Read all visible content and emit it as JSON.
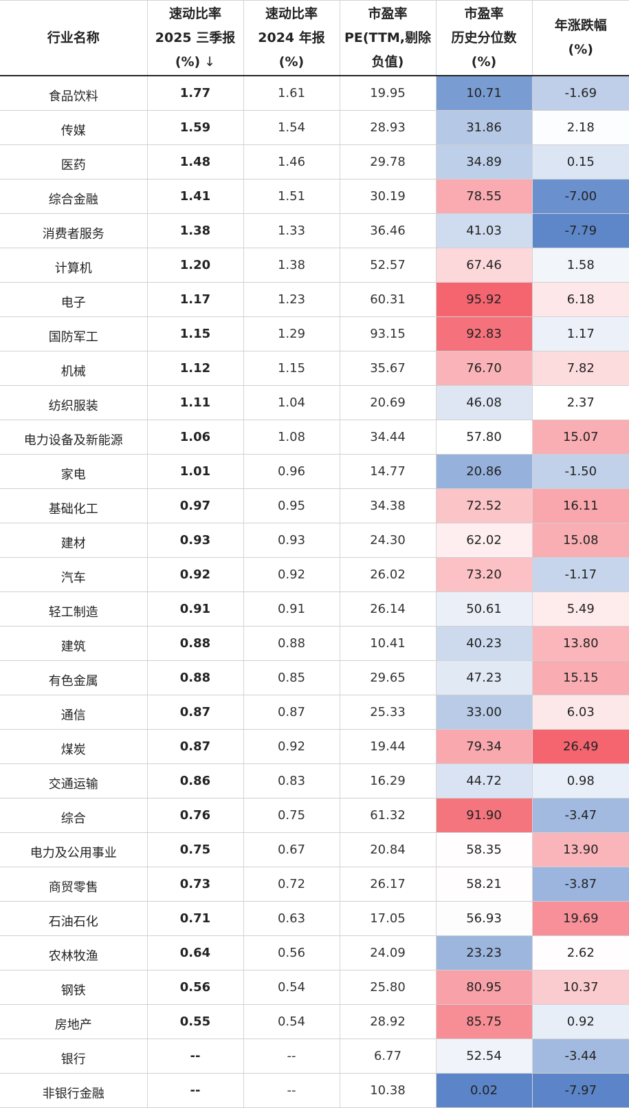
{
  "headers": {
    "name": "行业名称",
    "quick25": [
      "速动比率",
      "2025 三季报",
      "(%)"
    ],
    "quick25_sort_icon": "down-arrow",
    "quick24": [
      "速动比率",
      "2024 年报",
      "(%)"
    ],
    "pe": [
      "市盈率",
      "PE(TTM,剔除",
      "负值)"
    ],
    "pe_pct": [
      "市盈率",
      "历史分位数",
      "(%)"
    ],
    "chg": [
      "年涨跌幅",
      "(%)"
    ]
  },
  "colors": {
    "blue_strong": "#5b85c8",
    "red_strong": "#f4656f",
    "neutral": "#ffffff"
  },
  "rows": [
    {
      "name": "食品饮料",
      "quick25": "1.77",
      "quick24": "1.61",
      "pe": "19.95",
      "pe_pct": "10.71",
      "chg": "-1.69"
    },
    {
      "name": "传媒",
      "quick25": "1.59",
      "quick24": "1.54",
      "pe": "28.93",
      "pe_pct": "31.86",
      "chg": "2.18"
    },
    {
      "name": "医药",
      "quick25": "1.48",
      "quick24": "1.46",
      "pe": "29.78",
      "pe_pct": "34.89",
      "chg": "0.15"
    },
    {
      "name": "综合金融",
      "quick25": "1.41",
      "quick24": "1.51",
      "pe": "30.19",
      "pe_pct": "78.55",
      "chg": "-7.00"
    },
    {
      "name": "消费者服务",
      "quick25": "1.38",
      "quick24": "1.33",
      "pe": "36.46",
      "pe_pct": "41.03",
      "chg": "-7.79"
    },
    {
      "name": "计算机",
      "quick25": "1.20",
      "quick24": "1.38",
      "pe": "52.57",
      "pe_pct": "67.46",
      "chg": "1.58"
    },
    {
      "name": "电子",
      "quick25": "1.17",
      "quick24": "1.23",
      "pe": "60.31",
      "pe_pct": "95.92",
      "chg": "6.18"
    },
    {
      "name": "国防军工",
      "quick25": "1.15",
      "quick24": "1.29",
      "pe": "93.15",
      "pe_pct": "92.83",
      "chg": "1.17"
    },
    {
      "name": "机械",
      "quick25": "1.12",
      "quick24": "1.15",
      "pe": "35.67",
      "pe_pct": "76.70",
      "chg": "7.82"
    },
    {
      "name": "纺织服装",
      "quick25": "1.11",
      "quick24": "1.04",
      "pe": "20.69",
      "pe_pct": "46.08",
      "chg": "2.37"
    },
    {
      "name": "电力设备及新能源",
      "quick25": "1.06",
      "quick24": "1.08",
      "pe": "34.44",
      "pe_pct": "57.80",
      "chg": "15.07"
    },
    {
      "name": "家电",
      "quick25": "1.01",
      "quick24": "0.96",
      "pe": "14.77",
      "pe_pct": "20.86",
      "chg": "-1.50"
    },
    {
      "name": "基础化工",
      "quick25": "0.97",
      "quick24": "0.95",
      "pe": "34.38",
      "pe_pct": "72.52",
      "chg": "16.11"
    },
    {
      "name": "建材",
      "quick25": "0.93",
      "quick24": "0.93",
      "pe": "24.30",
      "pe_pct": "62.02",
      "chg": "15.08"
    },
    {
      "name": "汽车",
      "quick25": "0.92",
      "quick24": "0.92",
      "pe": "26.02",
      "pe_pct": "73.20",
      "chg": "-1.17"
    },
    {
      "name": "轻工制造",
      "quick25": "0.91",
      "quick24": "0.91",
      "pe": "26.14",
      "pe_pct": "50.61",
      "chg": "5.49"
    },
    {
      "name": "建筑",
      "quick25": "0.88",
      "quick24": "0.88",
      "pe": "10.41",
      "pe_pct": "40.23",
      "chg": "13.80"
    },
    {
      "name": "有色金属",
      "quick25": "0.88",
      "quick24": "0.85",
      "pe": "29.65",
      "pe_pct": "47.23",
      "chg": "15.15"
    },
    {
      "name": "通信",
      "quick25": "0.87",
      "quick24": "0.87",
      "pe": "25.33",
      "pe_pct": "33.00",
      "chg": "6.03"
    },
    {
      "name": "煤炭",
      "quick25": "0.87",
      "quick24": "0.92",
      "pe": "19.44",
      "pe_pct": "79.34",
      "chg": "26.49"
    },
    {
      "name": "交通运输",
      "quick25": "0.86",
      "quick24": "0.83",
      "pe": "16.29",
      "pe_pct": "44.72",
      "chg": "0.98"
    },
    {
      "name": "综合",
      "quick25": "0.76",
      "quick24": "0.75",
      "pe": "61.32",
      "pe_pct": "91.90",
      "chg": "-3.47"
    },
    {
      "name": "电力及公用事业",
      "quick25": "0.75",
      "quick24": "0.67",
      "pe": "20.84",
      "pe_pct": "58.35",
      "chg": "13.90"
    },
    {
      "name": "商贸零售",
      "quick25": "0.73",
      "quick24": "0.72",
      "pe": "26.17",
      "pe_pct": "58.21",
      "chg": "-3.87"
    },
    {
      "name": "石油石化",
      "quick25": "0.71",
      "quick24": "0.63",
      "pe": "17.05",
      "pe_pct": "56.93",
      "chg": "19.69"
    },
    {
      "name": "农林牧渔",
      "quick25": "0.64",
      "quick24": "0.56",
      "pe": "24.09",
      "pe_pct": "23.23",
      "chg": "2.62"
    },
    {
      "name": "钢铁",
      "quick25": "0.56",
      "quick24": "0.54",
      "pe": "25.80",
      "pe_pct": "80.95",
      "chg": "10.37"
    },
    {
      "name": "房地产",
      "quick25": "0.55",
      "quick24": "0.54",
      "pe": "28.92",
      "pe_pct": "85.75",
      "chg": "0.92"
    },
    {
      "name": "银行",
      "quick25": "--",
      "quick24": "--",
      "pe": "6.77",
      "pe_pct": "52.54",
      "chg": "-3.44"
    },
    {
      "name": "非银行金融",
      "quick25": "--",
      "quick24": "--",
      "pe": "10.38",
      "pe_pct": "0.02",
      "chg": "-7.97"
    }
  ]
}
